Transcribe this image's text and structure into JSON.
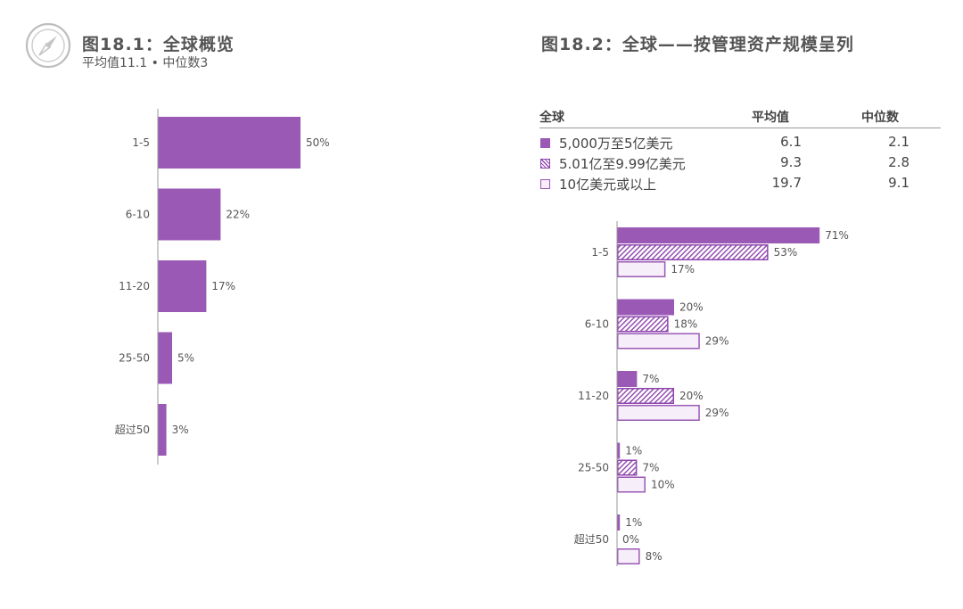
{
  "icon": "compass-icon",
  "colors": {
    "accent": "#9b59b6",
    "hatch": "#8e44ad",
    "light_fill": "#f6eef9",
    "text": "#555555"
  },
  "fig1": {
    "title": "图18.1：全球概览",
    "subtitle": "平均值11.1 • 中位数3"
  },
  "fig2": {
    "title": "图18.2：全球——按管理资产规模呈列",
    "legend": {
      "header": [
        "全球",
        "平均值",
        "中位数"
      ],
      "rows": [
        {
          "label": "5,000万至5亿美元",
          "mean": "6.1",
          "median": "2.1",
          "style": "solid"
        },
        {
          "label": "5.01亿至9.99亿美元",
          "mean": "9.3",
          "median": "2.8",
          "style": "hatch"
        },
        {
          "label": "10亿美元或以上",
          "mean": "19.7",
          "median": "9.1",
          "style": "outline"
        }
      ]
    }
  },
  "chart_data": [
    {
      "type": "bar",
      "orientation": "horizontal",
      "title": "图18.1：全球概览",
      "subtitle": "平均值11.1 • 中位数3",
      "categories": [
        "1-5",
        "6-10",
        "11-20",
        "25-50",
        "超过50"
      ],
      "values": [
        50,
        22,
        17,
        5,
        3
      ],
      "value_labels": [
        "50%",
        "22%",
        "17%",
        "5%",
        "3%"
      ],
      "unit": "%",
      "grid": false
    },
    {
      "type": "bar",
      "orientation": "horizontal",
      "title": "图18.2：全球——按管理资产规模呈列",
      "categories": [
        "1-5",
        "6-10",
        "11-20",
        "25-50",
        "超过50"
      ],
      "series": [
        {
          "name": "5,000万至5亿美元",
          "values": [
            71,
            20,
            7,
            1,
            1
          ],
          "labels": [
            "71%",
            "20%",
            "7%",
            "1%",
            "1%"
          ]
        },
        {
          "name": "5.01亿至9.99亿美元",
          "values": [
            53,
            18,
            20,
            7,
            0
          ],
          "labels": [
            "53%",
            "18%",
            "20%",
            "7%",
            "0%"
          ]
        },
        {
          "name": "10亿美元或以上",
          "values": [
            17,
            29,
            29,
            10,
            8
          ],
          "labels": [
            "17%",
            "29%",
            "29%",
            "10%",
            "8%"
          ]
        }
      ],
      "unit": "%",
      "grid": false,
      "legend_position": "top"
    }
  ]
}
